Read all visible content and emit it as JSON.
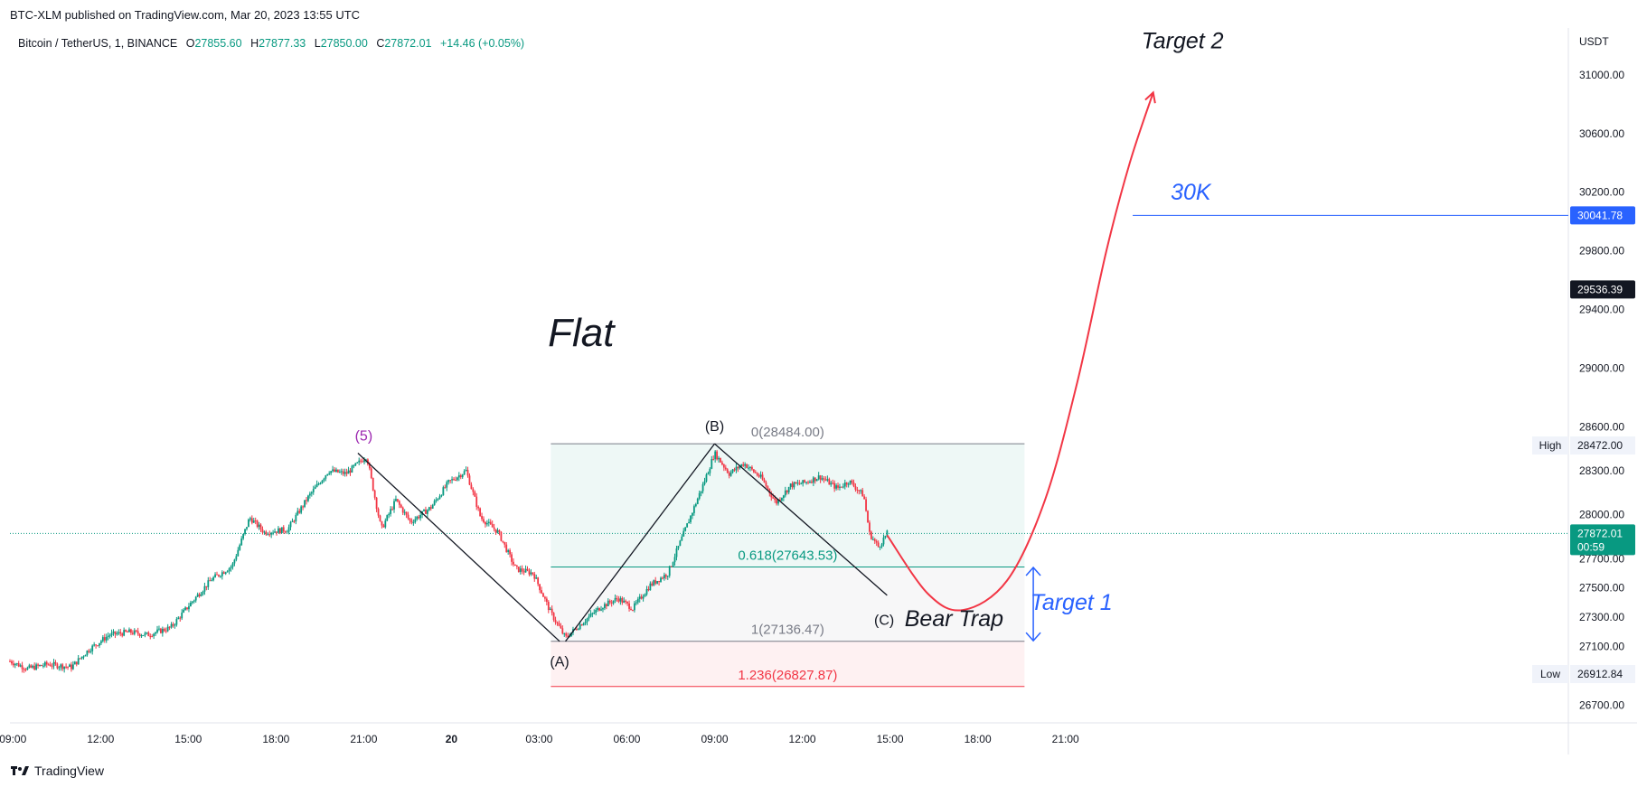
{
  "publisher": "BTC-XLM published on TradingView.com, Mar 20, 2023 13:55 UTC",
  "symbol": {
    "name": "Bitcoin / TetherUS, 1, BINANCE",
    "o_label": "O",
    "o": "27855.60",
    "h_label": "H",
    "h": "27877.33",
    "l_label": "L",
    "l": "27850.00",
    "c_label": "C",
    "c": "27872.01",
    "change": "+14.46 (+0.05%)"
  },
  "footer": {
    "brand": "TradingView"
  },
  "colors": {
    "up": "#089981",
    "down": "#f23645",
    "blue": "#2962ff",
    "red_curve": "#f23645",
    "fib_green": "#089981",
    "fib_grey": "#787b86",
    "fib_red": "#f23645"
  },
  "chart_data": {
    "type": "candlestick",
    "currency": "USDT",
    "y_ticks": [
      26700,
      27100,
      27300,
      27500,
      27700,
      28000,
      28300,
      28600,
      29000,
      29400,
      29800,
      30200,
      30600,
      31000
    ],
    "y_tick_labels": [
      "26700.00",
      "27100.00",
      "27300.00",
      "27500.00",
      "27700.00",
      "28000.00",
      "28300.00",
      "28600.00",
      "29000.00",
      "29400.00",
      "29800.00",
      "30200.00",
      "30600.00",
      "31000.00"
    ],
    "ylim": [
      26580,
      31320
    ],
    "x_ticks": [
      {
        "label": "09:00",
        "hour": 0,
        "bold": false
      },
      {
        "label": "12:00",
        "hour": 3,
        "bold": false
      },
      {
        "label": "15:00",
        "hour": 6,
        "bold": false
      },
      {
        "label": "18:00",
        "hour": 9,
        "bold": false
      },
      {
        "label": "21:00",
        "hour": 12,
        "bold": false
      },
      {
        "label": "20",
        "hour": 15,
        "bold": true
      },
      {
        "label": "03:00",
        "hour": 18,
        "bold": false
      },
      {
        "label": "06:00",
        "hour": 21,
        "bold": false
      },
      {
        "label": "09:00",
        "hour": 24,
        "bold": false
      },
      {
        "label": "12:00",
        "hour": 27,
        "bold": false
      },
      {
        "label": "15:00",
        "hour": 30,
        "bold": false
      },
      {
        "label": "18:00",
        "hour": 33,
        "bold": false
      },
      {
        "label": "21:00",
        "hour": 36,
        "bold": false
      }
    ],
    "xlim_hours": [
      -0.1,
      53.2
    ],
    "price_path": [
      [
        -0.1,
        27000
      ],
      [
        0.5,
        26950
      ],
      [
        1.2,
        26980
      ],
      [
        2.0,
        26960
      ],
      [
        2.6,
        27080
      ],
      [
        3.3,
        27180
      ],
      [
        4.0,
        27200
      ],
      [
        4.6,
        27180
      ],
      [
        5.4,
        27230
      ],
      [
        6.1,
        27400
      ],
      [
        6.8,
        27560
      ],
      [
        7.5,
        27650
      ],
      [
        8.1,
        27980
      ],
      [
        8.6,
        27880
      ],
      [
        9.4,
        27900
      ],
      [
        10.1,
        28120
      ],
      [
        10.8,
        28300
      ],
      [
        11.4,
        28280
      ],
      [
        12.1,
        28400
      ],
      [
        12.6,
        27900
      ],
      [
        13.1,
        28100
      ],
      [
        13.6,
        27950
      ],
      [
        14.3,
        28050
      ],
      [
        14.9,
        28220
      ],
      [
        15.5,
        28300
      ],
      [
        16.0,
        27980
      ],
      [
        16.6,
        27880
      ],
      [
        17.2,
        27630
      ],
      [
        17.8,
        27600
      ],
      [
        18.4,
        27330
      ],
      [
        18.9,
        27160
      ],
      [
        19.4,
        27250
      ],
      [
        20.1,
        27370
      ],
      [
        20.7,
        27430
      ],
      [
        21.2,
        27360
      ],
      [
        21.8,
        27520
      ],
      [
        22.4,
        27600
      ],
      [
        23.0,
        27900
      ],
      [
        23.6,
        28200
      ],
      [
        24.0,
        28420
      ],
      [
        24.5,
        28280
      ],
      [
        25.0,
        28350
      ],
      [
        25.6,
        28250
      ],
      [
        26.1,
        28080
      ],
      [
        26.6,
        28200
      ],
      [
        27.1,
        28220
      ],
      [
        27.6,
        28260
      ],
      [
        28.2,
        28180
      ],
      [
        28.6,
        28230
      ],
      [
        29.1,
        28130
      ],
      [
        29.3,
        27870
      ],
      [
        29.6,
        27780
      ],
      [
        29.9,
        27872
      ]
    ],
    "fib_levels": [
      {
        "ratio": "0",
        "price": 28484.0,
        "label": "0(28484.00)",
        "color": "#787b86"
      },
      {
        "ratio": "0.618",
        "price": 27643.53,
        "label": "0.618(27643.53)",
        "color": "#089981"
      },
      {
        "ratio": "1",
        "price": 27136.47,
        "label": "1(27136.47)",
        "color": "#787b86"
      },
      {
        "ratio": "1.236",
        "price": 26827.87,
        "label": "1.236(26827.87)",
        "color": "#f23645"
      }
    ],
    "fib_range_hours": [
      18.4,
      34.6
    ],
    "waves": [
      {
        "label": "(5)",
        "hour": 12.0,
        "price": 28420,
        "color": "#9c27b0"
      },
      {
        "label": "(A)",
        "hour": 18.7,
        "price": 27150,
        "color": "#131722"
      },
      {
        "label": "(B)",
        "hour": 24.0,
        "price": 28484,
        "color": "#131722"
      },
      {
        "label": "(C)",
        "hour": 29.8,
        "price": 27420,
        "color": "#131722"
      }
    ],
    "wave_lines": [
      [
        [
          11.8,
          28420
        ],
        [
          18.7,
          27136
        ]
      ],
      [
        [
          18.9,
          27136
        ],
        [
          24.0,
          28484
        ]
      ],
      [
        [
          24.0,
          28484
        ],
        [
          29.9,
          27450
        ]
      ]
    ],
    "projection_curve": [
      [
        29.9,
        27860
      ],
      [
        31.3,
        27460
      ],
      [
        32.5,
        27350
      ],
      [
        34.0,
        27550
      ],
      [
        35.3,
        28100
      ],
      [
        36.4,
        28900
      ],
      [
        37.4,
        29800
      ],
      [
        38.2,
        30400
      ],
      [
        39.0,
        30880
      ]
    ],
    "horizontal_line": {
      "price": 30041.78,
      "from_hour": 38.3,
      "label": "30K"
    },
    "price_badges": [
      {
        "text": "30041.78",
        "price": 30041.78,
        "style": "blue"
      },
      {
        "text": "29536.39",
        "price": 29536.39,
        "style": "dark"
      },
      {
        "text": "27872.01",
        "sub": "00:59",
        "price": 27872.01,
        "style": "green"
      }
    ],
    "range_labels": [
      {
        "tag": "High",
        "value": "28472.00",
        "price": 28472.0
      },
      {
        "tag": "Low",
        "value": "26912.84",
        "price": 26912.84
      }
    ],
    "annotations": [
      {
        "text": "Flat",
        "hour": 18.3,
        "price": 29150,
        "color": "#131722",
        "size": "large"
      },
      {
        "text": "Target 2",
        "hour": 38.6,
        "price": 31180,
        "color": "#131722",
        "size": "medium"
      },
      {
        "text": "30K",
        "hour": 39.6,
        "price": 30150,
        "color": "#2962ff",
        "size": "medium"
      },
      {
        "text": "Bear Trap",
        "hour": 30.5,
        "price": 27240,
        "color": "#131722",
        "size": "medium"
      },
      {
        "text": "Target 1",
        "hour": 34.8,
        "price": 27350,
        "color": "#2962ff",
        "size": "medium"
      }
    ],
    "target1_arrow": {
      "hour": 34.9,
      "from": 27640,
      "to": 27140
    }
  }
}
